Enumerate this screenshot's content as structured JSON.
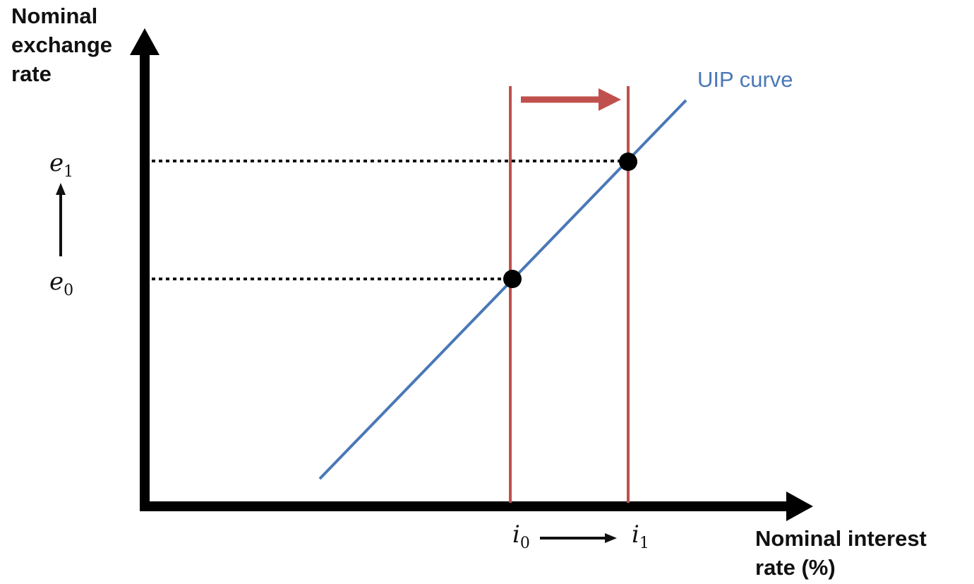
{
  "axes": {
    "y_title": "Nominal\nexchange\nrate",
    "x_title": "Nominal interest\nrate (%)"
  },
  "curve": {
    "label": "UIP curve",
    "color": "#4a78b8"
  },
  "policy_lines": {
    "color": "#c0504d"
  },
  "points": [
    {
      "id": "initial",
      "rate_symbol": "i",
      "rate_sub": "0",
      "fx_symbol": "e",
      "fx_sub": "0"
    },
    {
      "id": "new",
      "rate_symbol": "i",
      "rate_sub": "1",
      "fx_symbol": "e",
      "fx_sub": "1"
    }
  ],
  "icons": {
    "shift_arrow": "arrow-right-icon",
    "fx_move_arrow": "arrow-up-icon",
    "rate_move_arrow": "arrow-right-icon"
  }
}
